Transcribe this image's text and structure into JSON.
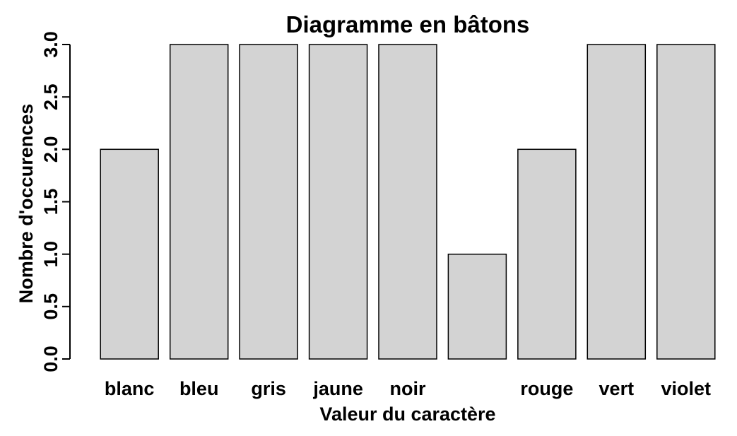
{
  "chart_data": {
    "type": "bar",
    "title": "Diagramme en bâtons",
    "xlabel": "Valeur du caractère",
    "ylabel": "Nombre d'occurences",
    "categories": [
      "blanc",
      "bleu",
      "gris",
      "jaune",
      "noir",
      "",
      "rouge",
      "vert",
      "violet"
    ],
    "values": [
      2,
      3,
      3,
      3,
      3,
      1,
      2,
      3,
      3
    ],
    "ylim": [
      0,
      3
    ],
    "yticks": [
      "0.0",
      "0.5",
      "1.0",
      "1.5",
      "2.0",
      "2.5",
      "3.0"
    ],
    "grid": false,
    "bar_color": "#d3d3d3",
    "border_color": "#000000"
  }
}
